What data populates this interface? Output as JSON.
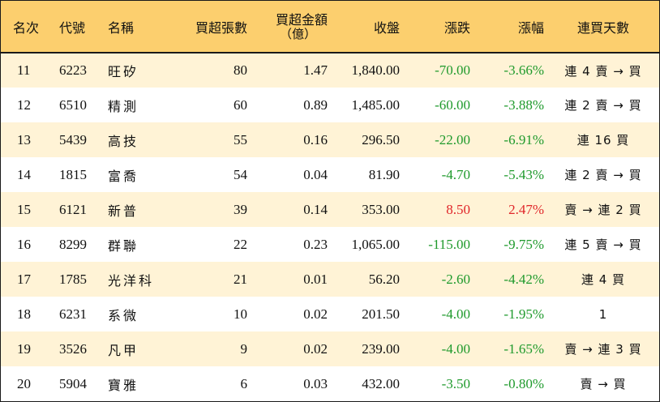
{
  "headers": {
    "rank": "名次",
    "code": "代號",
    "name": "名稱",
    "volume": "買超張數",
    "amount_line1": "買超金額",
    "amount_line2": "（億）",
    "close": "收盤",
    "change": "漲跌",
    "pct": "漲幅",
    "days": "連買天數"
  },
  "colors": {
    "header_bg": "#fccf6e",
    "stripe_bg": "#fff3d6",
    "down": "#1f9a2c",
    "up": "#e0262a"
  },
  "rows": [
    {
      "rank": "11",
      "code": "6223",
      "name": "旺矽",
      "volume": "80",
      "amount": "1.47",
      "close": "1,840.00",
      "change": "-70.00",
      "pct": "-3.66%",
      "dir": "down",
      "days": "連 4 賣 → 買"
    },
    {
      "rank": "12",
      "code": "6510",
      "name": "精測",
      "volume": "60",
      "amount": "0.89",
      "close": "1,485.00",
      "change": "-60.00",
      "pct": "-3.88%",
      "dir": "down",
      "days": "連 2 賣 → 買"
    },
    {
      "rank": "13",
      "code": "5439",
      "name": "高技",
      "volume": "55",
      "amount": "0.16",
      "close": "296.50",
      "change": "-22.00",
      "pct": "-6.91%",
      "dir": "down",
      "days": "連 16 買"
    },
    {
      "rank": "14",
      "code": "1815",
      "name": "富喬",
      "volume": "54",
      "amount": "0.04",
      "close": "81.90",
      "change": "-4.70",
      "pct": "-5.43%",
      "dir": "down",
      "days": "連 2 賣 → 買"
    },
    {
      "rank": "15",
      "code": "6121",
      "name": "新普",
      "volume": "39",
      "amount": "0.14",
      "close": "353.00",
      "change": "8.50",
      "pct": "2.47%",
      "dir": "up",
      "days": "賣 → 連 2 買"
    },
    {
      "rank": "16",
      "code": "8299",
      "name": "群聯",
      "volume": "22",
      "amount": "0.23",
      "close": "1,065.00",
      "change": "-115.00",
      "pct": "-9.75%",
      "dir": "down",
      "days": "連 5 賣 → 買"
    },
    {
      "rank": "17",
      "code": "1785",
      "name": "光洋科",
      "volume": "21",
      "amount": "0.01",
      "close": "56.20",
      "change": "-2.60",
      "pct": "-4.42%",
      "dir": "down",
      "days": "連 4 買"
    },
    {
      "rank": "18",
      "code": "6231",
      "name": "系微",
      "volume": "10",
      "amount": "0.02",
      "close": "201.50",
      "change": "-4.00",
      "pct": "-1.95%",
      "dir": "down",
      "days": "1"
    },
    {
      "rank": "19",
      "code": "3526",
      "name": "凡甲",
      "volume": "9",
      "amount": "0.02",
      "close": "239.00",
      "change": "-4.00",
      "pct": "-1.65%",
      "dir": "down",
      "days": "賣 → 連 3 買"
    },
    {
      "rank": "20",
      "code": "5904",
      "name": "寶雅",
      "volume": "6",
      "amount": "0.03",
      "close": "432.00",
      "change": "-3.50",
      "pct": "-0.80%",
      "dir": "down",
      "days": "賣 → 買"
    }
  ]
}
